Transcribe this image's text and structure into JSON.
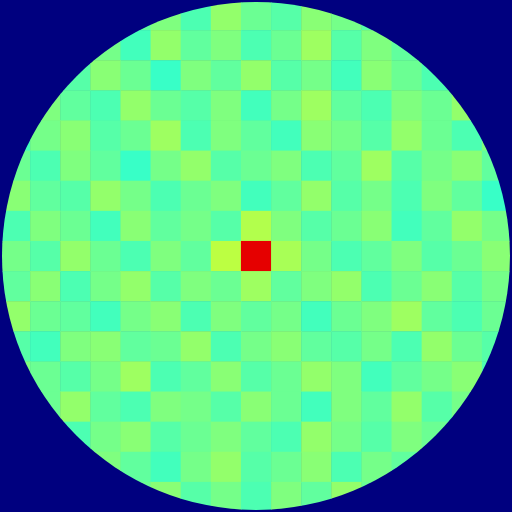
{
  "chart_data": {
    "type": "heatmap",
    "tick_labels": false,
    "zlim": [
      0,
      1
    ],
    "cells": [
      [
        null,
        null,
        null,
        null,
        0.47,
        0.5,
        0.45,
        0.52,
        0.48,
        0.46,
        0.51,
        0.49,
        0.46,
        null,
        null,
        null,
        null
      ],
      [
        null,
        null,
        null,
        0.49,
        0.44,
        0.52,
        0.47,
        0.5,
        0.45,
        0.48,
        0.53,
        0.46,
        0.5,
        0.47,
        null,
        null,
        null
      ],
      [
        null,
        null,
        0.46,
        0.51,
        0.48,
        0.43,
        0.5,
        0.47,
        0.52,
        0.46,
        0.49,
        0.44,
        0.51,
        0.48,
        0.45,
        null,
        null
      ],
      [
        null,
        0.5,
        0.47,
        0.45,
        0.52,
        0.48,
        0.46,
        0.5,
        0.44,
        0.49,
        0.53,
        0.47,
        0.45,
        0.5,
        0.48,
        0.52,
        null
      ],
      [
        0.44,
        0.49,
        0.51,
        0.46,
        0.48,
        0.53,
        0.45,
        0.5,
        0.47,
        0.44,
        0.51,
        0.49,
        0.46,
        0.52,
        0.48,
        0.45,
        0.5
      ],
      [
        0.48,
        0.45,
        0.5,
        0.47,
        0.43,
        0.49,
        0.52,
        0.46,
        0.48,
        0.5,
        0.45,
        0.47,
        0.53,
        0.46,
        0.49,
        0.51,
        0.47
      ],
      [
        0.51,
        0.47,
        0.46,
        0.52,
        0.49,
        0.45,
        0.48,
        0.5,
        0.44,
        0.47,
        0.52,
        0.46,
        0.49,
        0.45,
        0.5,
        0.47,
        0.43
      ],
      [
        0.45,
        0.5,
        0.48,
        0.44,
        0.51,
        0.47,
        0.49,
        0.46,
        0.55,
        0.5,
        0.46,
        0.48,
        0.51,
        0.44,
        0.47,
        0.52,
        0.49
      ],
      [
        0.49,
        0.46,
        0.52,
        0.48,
        0.45,
        0.5,
        0.47,
        0.56,
        0.9,
        0.54,
        0.49,
        0.45,
        0.47,
        0.5,
        0.46,
        0.48,
        0.51
      ],
      [
        0.47,
        0.51,
        0.45,
        0.49,
        0.52,
        0.46,
        0.5,
        0.48,
        0.53,
        0.47,
        0.5,
        0.52,
        0.45,
        0.48,
        0.51,
        0.46,
        0.49
      ],
      [
        0.52,
        0.48,
        0.47,
        0.44,
        0.49,
        0.51,
        0.45,
        0.5,
        0.47,
        0.49,
        0.44,
        0.48,
        0.5,
        0.53,
        0.47,
        0.45,
        0.48
      ],
      [
        0.46,
        0.44,
        0.5,
        0.51,
        0.47,
        0.48,
        0.52,
        0.45,
        0.49,
        0.51,
        0.47,
        0.46,
        0.49,
        0.45,
        0.52,
        0.48,
        0.46
      ],
      [
        0.5,
        0.48,
        0.46,
        0.49,
        0.53,
        0.45,
        0.47,
        0.51,
        0.46,
        0.48,
        0.52,
        0.5,
        0.44,
        0.47,
        0.49,
        0.51,
        0.45
      ],
      [
        null,
        0.48,
        0.52,
        0.47,
        0.45,
        0.5,
        0.49,
        0.46,
        0.51,
        0.48,
        0.44,
        0.5,
        0.47,
        0.52,
        0.46,
        0.49,
        null
      ],
      [
        null,
        null,
        0.45,
        0.49,
        0.51,
        0.46,
        0.48,
        0.5,
        0.47,
        0.45,
        0.52,
        0.49,
        0.46,
        0.5,
        0.48,
        null,
        null
      ],
      [
        null,
        null,
        null,
        0.5,
        0.47,
        0.44,
        0.49,
        0.52,
        0.46,
        0.48,
        0.51,
        0.45,
        0.49,
        0.47,
        null,
        null,
        null
      ],
      [
        null,
        null,
        null,
        null,
        0.48,
        0.51,
        0.46,
        0.49,
        0.45,
        0.5,
        0.47,
        0.52,
        0.48,
        null,
        null,
        null,
        null
      ]
    ]
  }
}
